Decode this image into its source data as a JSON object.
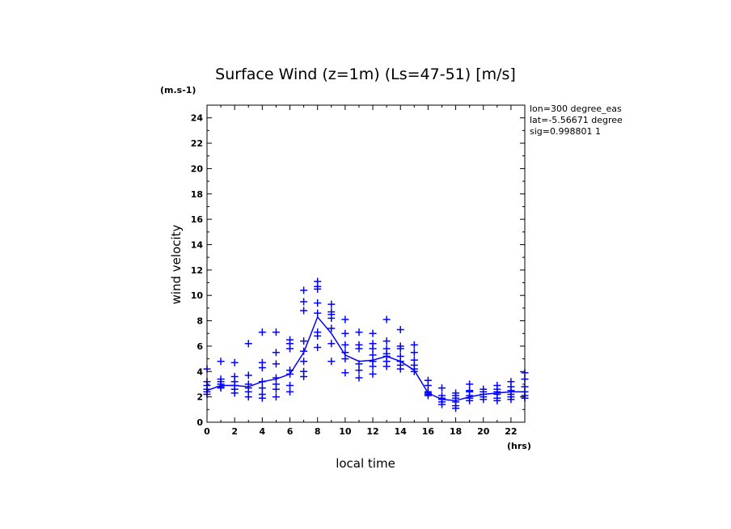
{
  "chart_data": {
    "type": "scatter",
    "title": "Surface Wind (z=1m) (Ls=47-51) [m/s]",
    "xlabel": "local time",
    "xunit": "(hrs)",
    "ylabel": "wind velocity",
    "yunit": "(m.s-1)",
    "xlim": [
      0,
      23
    ],
    "ylim": [
      0,
      25
    ],
    "xticks": [
      0,
      2,
      4,
      6,
      8,
      10,
      12,
      14,
      16,
      18,
      20,
      22
    ],
    "yticks": [
      0,
      2,
      4,
      6,
      8,
      10,
      12,
      14,
      16,
      18,
      20,
      22,
      24
    ],
    "grid": false,
    "info": [
      "lon=300 degree_eas",
      "lat=-5.56671 degree",
      "sig=0.998801 1"
    ],
    "color": "#0000ff",
    "series": [
      {
        "kind": "line",
        "x": [
          0,
          1,
          2,
          3,
          4,
          5,
          6,
          7,
          8,
          9,
          10,
          11,
          12,
          13,
          14,
          15,
          16,
          17,
          18,
          19,
          20,
          21,
          22,
          23
        ],
        "y": [
          2.5,
          2.9,
          2.9,
          2.8,
          3.2,
          3.4,
          3.8,
          5.5,
          8.3,
          7.0,
          5.3,
          4.8,
          4.9,
          5.2,
          4.8,
          4.1,
          2.3,
          1.8,
          1.7,
          2.0,
          2.2,
          2.3,
          2.4,
          2.4
        ]
      },
      {
        "kind": "points",
        "points": [
          [
            0,
            4.2
          ],
          [
            0,
            3.2
          ],
          [
            0,
            2.9
          ],
          [
            0,
            2.6
          ],
          [
            0,
            2.4
          ],
          [
            0,
            2.2
          ],
          [
            1,
            4.8
          ],
          [
            1,
            3.4
          ],
          [
            1,
            3.2
          ],
          [
            1,
            3.0
          ],
          [
            1,
            2.8
          ],
          [
            1,
            2.7
          ],
          [
            2,
            4.7
          ],
          [
            2,
            3.6
          ],
          [
            2,
            3.2
          ],
          [
            2,
            2.9
          ],
          [
            2,
            2.6
          ],
          [
            2,
            2.3
          ],
          [
            3,
            6.2
          ],
          [
            3,
            3.7
          ],
          [
            3,
            3.0
          ],
          [
            3,
            2.7
          ],
          [
            3,
            2.4
          ],
          [
            3,
            2.0
          ],
          [
            4,
            7.1
          ],
          [
            4,
            4.7
          ],
          [
            4,
            4.3
          ],
          [
            4,
            3.2
          ],
          [
            4,
            2.7
          ],
          [
            4,
            2.2
          ],
          [
            4,
            1.9
          ],
          [
            5,
            7.1
          ],
          [
            5,
            5.5
          ],
          [
            5,
            4.6
          ],
          [
            5,
            3.5
          ],
          [
            5,
            3.0
          ],
          [
            5,
            2.6
          ],
          [
            5,
            2.0
          ],
          [
            6,
            6.5
          ],
          [
            6,
            6.2
          ],
          [
            6,
            5.8
          ],
          [
            6,
            4.1
          ],
          [
            6,
            3.8
          ],
          [
            6,
            2.9
          ],
          [
            6,
            2.4
          ],
          [
            7,
            10.4
          ],
          [
            7,
            9.5
          ],
          [
            7,
            8.8
          ],
          [
            7,
            6.4
          ],
          [
            7,
            5.6
          ],
          [
            7,
            4.8
          ],
          [
            7,
            4.0
          ],
          [
            7,
            3.6
          ],
          [
            8,
            11.1
          ],
          [
            8,
            10.7
          ],
          [
            8,
            10.5
          ],
          [
            8,
            9.4
          ],
          [
            8,
            8.6
          ],
          [
            8,
            7.1
          ],
          [
            8,
            6.8
          ],
          [
            8,
            5.9
          ],
          [
            9,
            9.3
          ],
          [
            9,
            8.7
          ],
          [
            9,
            8.5
          ],
          [
            9,
            8.2
          ],
          [
            9,
            7.4
          ],
          [
            9,
            6.2
          ],
          [
            9,
            4.8
          ],
          [
            10,
            8.1
          ],
          [
            10,
            7.0
          ],
          [
            10,
            6.1
          ],
          [
            10,
            5.5
          ],
          [
            10,
            5.0
          ],
          [
            10,
            3.9
          ],
          [
            11,
            7.1
          ],
          [
            11,
            6.1
          ],
          [
            11,
            5.8
          ],
          [
            11,
            4.6
          ],
          [
            11,
            4.1
          ],
          [
            11,
            3.5
          ],
          [
            12,
            7.0
          ],
          [
            12,
            6.2
          ],
          [
            12,
            5.8
          ],
          [
            12,
            5.3
          ],
          [
            12,
            4.8
          ],
          [
            12,
            4.4
          ],
          [
            12,
            3.8
          ],
          [
            13,
            8.1
          ],
          [
            13,
            6.4
          ],
          [
            13,
            5.8
          ],
          [
            13,
            5.4
          ],
          [
            13,
            5.2
          ],
          [
            13,
            4.8
          ],
          [
            13,
            4.4
          ],
          [
            14,
            7.3
          ],
          [
            14,
            6.0
          ],
          [
            14,
            5.8
          ],
          [
            14,
            5.2
          ],
          [
            14,
            4.8
          ],
          [
            14,
            4.5
          ],
          [
            14,
            4.2
          ],
          [
            15,
            6.1
          ],
          [
            15,
            5.5
          ],
          [
            15,
            4.9
          ],
          [
            15,
            4.5
          ],
          [
            15,
            4.2
          ],
          [
            15,
            4.0
          ],
          [
            16,
            3.3
          ],
          [
            16,
            2.9
          ],
          [
            16,
            2.4
          ],
          [
            16,
            2.3
          ],
          [
            16,
            2.2
          ],
          [
            16,
            2.1
          ],
          [
            17,
            2.7
          ],
          [
            17,
            2.1
          ],
          [
            17,
            1.9
          ],
          [
            17,
            1.8
          ],
          [
            17,
            1.6
          ],
          [
            17,
            1.4
          ],
          [
            18,
            2.3
          ],
          [
            18,
            2.1
          ],
          [
            18,
            1.9
          ],
          [
            18,
            1.6
          ],
          [
            18,
            1.3
          ],
          [
            18,
            1.1
          ],
          [
            19,
            3.0
          ],
          [
            19,
            2.5
          ],
          [
            19,
            2.4
          ],
          [
            19,
            2.1
          ],
          [
            19,
            1.9
          ],
          [
            19,
            1.7
          ],
          [
            20,
            2.6
          ],
          [
            20,
            2.4
          ],
          [
            20,
            2.2
          ],
          [
            20,
            2.0
          ],
          [
            20,
            1.8
          ],
          [
            21,
            2.9
          ],
          [
            21,
            2.6
          ],
          [
            21,
            2.4
          ],
          [
            21,
            2.2
          ],
          [
            21,
            1.9
          ],
          [
            21,
            1.7
          ],
          [
            22,
            3.2
          ],
          [
            22,
            2.8
          ],
          [
            22,
            2.5
          ],
          [
            22,
            2.2
          ],
          [
            22,
            2.0
          ],
          [
            22,
            1.8
          ],
          [
            23,
            3.9
          ],
          [
            23,
            3.4
          ],
          [
            23,
            2.8
          ],
          [
            23,
            2.4
          ],
          [
            23,
            2.1
          ],
          [
            23,
            1.9
          ]
        ]
      }
    ]
  }
}
